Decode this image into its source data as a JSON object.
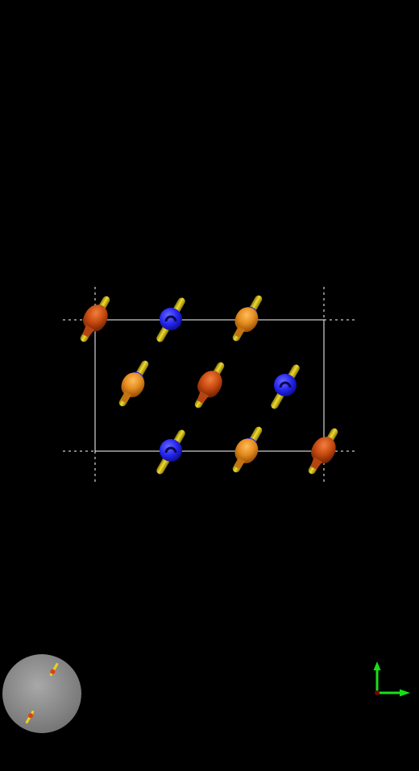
{
  "scene": {
    "background": "#000000",
    "cell_color": "#ffffff",
    "colors": {
      "rod": "#d8c21a",
      "rod_dark": "#8a7a08",
      "blue": "#2424ee",
      "blue_hole": "#0a0a50",
      "orange": "#e38a1e",
      "red_orange": "#c84a10"
    },
    "molecules": [
      {
        "site": "top-left-corner",
        "type": "red_orange"
      },
      {
        "site": "top-edge-1",
        "type": "blue"
      },
      {
        "site": "top-edge-2",
        "type": "orange"
      },
      {
        "site": "middle-1",
        "type": "orange"
      },
      {
        "site": "middle-2",
        "type": "red_orange"
      },
      {
        "site": "middle-3",
        "type": "blue"
      },
      {
        "site": "bottom-edge-1",
        "type": "blue"
      },
      {
        "site": "bottom-edge-2",
        "type": "orange"
      },
      {
        "site": "bottom-right-corner",
        "type": "red_orange"
      }
    ]
  },
  "orientation_sphere": {
    "color": "#8e8e8e",
    "marker": "spin-marker-icon"
  },
  "axis_gizmo": {
    "y_axis_color": "#18e018",
    "x_axis_color": "#18e018",
    "origin_color": "#7a0000"
  }
}
